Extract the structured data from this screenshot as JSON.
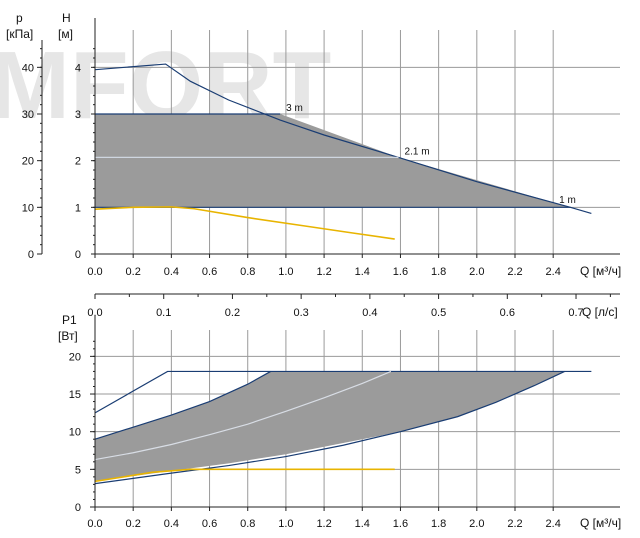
{
  "watermark": "MFORT",
  "chart_data": [
    {
      "type": "line",
      "y_axis_left": {
        "title": "p",
        "unit": "[кПа]",
        "ticks": [
          0,
          10,
          20,
          30,
          40
        ],
        "range": [
          0,
          48
        ]
      },
      "y_axis_right": {
        "title": "H",
        "unit": "[м]",
        "ticks": [
          0,
          1,
          2,
          3,
          4
        ],
        "range": [
          0,
          4.8
        ]
      },
      "x_axis": {
        "label": "Q [м³/ч]",
        "ticks": [
          "0.0",
          "0.2",
          "0.4",
          "0.6",
          "0.8",
          "1.0",
          "1.2",
          "1.4",
          "1.6",
          "1.8",
          "2.0",
          "2.2",
          "2.4"
        ],
        "range": [
          0,
          2.75
        ]
      },
      "x_axis_secondary": {
        "label": "Q [л/с]",
        "ticks": [
          "0.0",
          "0.1",
          "0.2",
          "0.3",
          "0.4",
          "0.5",
          "0.6",
          "0.7"
        ],
        "range": [
          0,
          0.764
        ]
      },
      "grid": true,
      "annotations": [
        {
          "text": "3 m",
          "x": 0.97,
          "y": 3.0
        },
        {
          "text": "2.1 m",
          "x": 1.59,
          "y": 2.07
        },
        {
          "text": "1 m",
          "x": 2.4,
          "y": 1.03
        }
      ],
      "shaded_region": [
        [
          0,
          3.0
        ],
        [
          0.97,
          3.0
        ],
        [
          1.59,
          2.07
        ],
        [
          2.49,
          1.0
        ],
        [
          0,
          1.0
        ]
      ],
      "series": [
        {
          "role": "max_curve",
          "color": "#1a3d73",
          "x": [
            0,
            0.37,
            0.5,
            0.7,
            0.97,
            1.2,
            1.59,
            2.0,
            2.49,
            2.6
          ],
          "y": [
            3.95,
            4.07,
            3.7,
            3.3,
            2.87,
            2.55,
            2.07,
            1.55,
            1.0,
            0.87
          ]
        },
        {
          "role": "const_3m",
          "color": "#1a3d73",
          "x": [
            0,
            0.97
          ],
          "y": [
            3.0,
            3.0
          ]
        },
        {
          "role": "const_2_1m",
          "color": "#cfd6e0",
          "x": [
            0,
            1.59
          ],
          "y": [
            2.07,
            2.07
          ]
        },
        {
          "role": "const_1m",
          "color": "#1a3d73",
          "x": [
            0,
            2.49
          ],
          "y": [
            1.0,
            1.0
          ]
        },
        {
          "role": "min_curve",
          "color": "#e8b400",
          "x": [
            0,
            0.2,
            0.4,
            0.52,
            0.8,
            1.1,
            1.35,
            1.57
          ],
          "y": [
            0.96,
            1.0,
            1.01,
            0.97,
            0.78,
            0.6,
            0.45,
            0.32
          ]
        }
      ]
    },
    {
      "type": "line",
      "y_axis": {
        "title": "P1",
        "unit": "[Вт]",
        "ticks": [
          0,
          5,
          10,
          15,
          20
        ],
        "range": [
          0,
          23.5
        ]
      },
      "x_axis": {
        "label": "Q [м³/ч]",
        "ticks": [
          "0.0",
          "0.2",
          "0.4",
          "0.6",
          "0.8",
          "1.0",
          "1.2",
          "1.4",
          "1.6",
          "1.8",
          "2.0",
          "2.2",
          "2.4"
        ],
        "range": [
          0,
          2.75
        ]
      },
      "grid": true,
      "shaded_region": [
        [
          0,
          9.0
        ],
        [
          0.2,
          10.6
        ],
        [
          0.4,
          12.2
        ],
        [
          0.6,
          14.0
        ],
        [
          0.8,
          16.3
        ],
        [
          0.92,
          18.0
        ],
        [
          2.46,
          18.0
        ],
        [
          2.3,
          16.1
        ],
        [
          2.1,
          13.9
        ],
        [
          1.9,
          12.0
        ],
        [
          1.6,
          10.0
        ],
        [
          1.3,
          8.5
        ],
        [
          1.0,
          7.0
        ],
        [
          0.7,
          5.8
        ],
        [
          0.4,
          4.8
        ],
        [
          0.2,
          4.1
        ],
        [
          0,
          3.5
        ]
      ],
      "series": [
        {
          "role": "max_power",
          "color": "#1a3d73",
          "x": [
            0,
            0.38,
            2.6
          ],
          "y": [
            12.5,
            18.0,
            18.0
          ]
        },
        {
          "role": "power_3m",
          "color": "#1a3d73",
          "x": [
            0,
            0.2,
            0.4,
            0.6,
            0.8,
            0.92
          ],
          "y": [
            9.0,
            10.6,
            12.2,
            14.0,
            16.3,
            18.0
          ]
        },
        {
          "role": "power_2_1m",
          "color": "#d8dde5",
          "x": [
            0,
            0.2,
            0.4,
            0.6,
            0.8,
            1.0,
            1.2,
            1.4,
            1.55
          ],
          "y": [
            6.3,
            7.2,
            8.3,
            9.6,
            11.0,
            12.7,
            14.5,
            16.4,
            18.0
          ]
        },
        {
          "role": "power_1m",
          "color": "#1a3d73",
          "x": [
            0,
            0.2,
            0.4,
            0.7,
            1.0,
            1.3,
            1.6,
            1.9,
            2.1,
            2.3,
            2.46
          ],
          "y": [
            3.1,
            3.8,
            4.5,
            5.5,
            6.7,
            8.2,
            10.0,
            12.0,
            13.9,
            16.1,
            18.0
          ]
        },
        {
          "role": "min_power",
          "color": "#e8b400",
          "x": [
            0,
            0.3,
            0.5,
            1.57
          ],
          "y": [
            3.4,
            4.6,
            5.0,
            5.0
          ]
        }
      ]
    }
  ]
}
